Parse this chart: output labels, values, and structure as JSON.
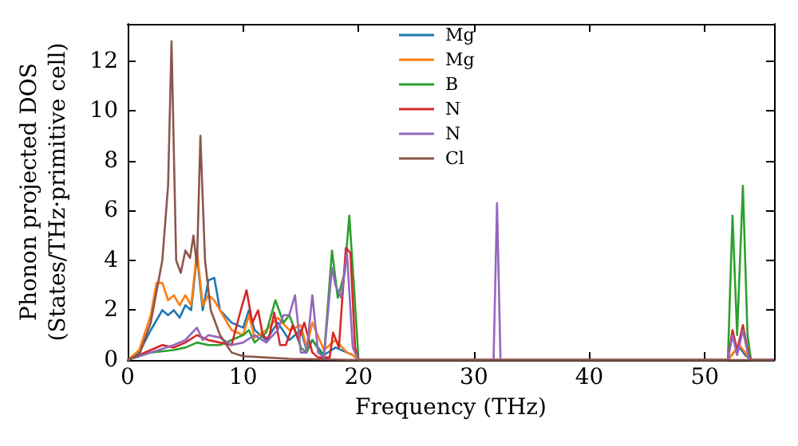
{
  "chart_data": {
    "type": "line",
    "xlabel": "Frequency (THz)",
    "ylabel": "Phonon projected DOS\n(States/THz·primitive cell)",
    "xlim": [
      0,
      56
    ],
    "ylim": [
      0,
      13.5
    ],
    "xticks": [
      0,
      10,
      20,
      30,
      40,
      50
    ],
    "yticks": [
      0,
      2,
      4,
      6,
      8,
      10,
      12
    ],
    "grid": false,
    "legend": "top",
    "marker": "none",
    "line_style": "solid",
    "series": [
      {
        "name": "Mg",
        "color": "#1f77b4",
        "x": [
          0,
          1,
          2,
          3,
          3.5,
          4,
          4.5,
          5,
          5.5,
          6,
          6.5,
          7,
          7.5,
          8,
          9,
          10,
          10.5,
          11,
          12,
          13,
          14,
          15,
          15.5,
          16,
          17,
          18,
          19,
          19.5,
          20,
          52,
          52.5,
          53,
          53.5,
          54,
          56
        ],
        "values": [
          0,
          0.3,
          1.2,
          2,
          1.8,
          2,
          1.7,
          2.2,
          2,
          4.2,
          2,
          3.2,
          3.3,
          2,
          1.5,
          1.3,
          2,
          1.2,
          0.8,
          1.5,
          0.8,
          1.2,
          0.4,
          0.8,
          0.2,
          0.5,
          0.3,
          0.2,
          0,
          0,
          0.3,
          0.5,
          0.2,
          0,
          0
        ]
      },
      {
        "name": "Mg",
        "color": "#ff7f0e",
        "x": [
          0,
          1,
          2,
          2.5,
          3,
          3.5,
          4,
          4.5,
          5,
          5.5,
          6,
          6.5,
          7,
          7.5,
          8,
          9,
          10,
          10.5,
          11,
          12,
          13,
          14,
          15,
          15.5,
          16,
          17,
          18,
          19,
          19.5,
          20,
          52,
          52.5,
          53,
          54,
          56
        ],
        "values": [
          0,
          0.4,
          1.8,
          3.1,
          3.1,
          2.4,
          2.6,
          2.2,
          2.6,
          2.2,
          4.4,
          2.2,
          2.6,
          2.4,
          2,
          1.2,
          1,
          1.8,
          0.9,
          1.2,
          1.7,
          1.2,
          1.4,
          0.5,
          1.5,
          0.4,
          0.8,
          0.3,
          0.2,
          0,
          0,
          0.3,
          0.6,
          0,
          0
        ]
      },
      {
        "name": "B",
        "color": "#2ca02c",
        "x": [
          0,
          2,
          4,
          5,
          6,
          7,
          8,
          9,
          10,
          10.5,
          11,
          12,
          12.8,
          13.5,
          14,
          14.5,
          15,
          15.5,
          16,
          17,
          17.7,
          18.2,
          18.8,
          19.2,
          19.6,
          20,
          52,
          52.4,
          52.8,
          53.3,
          53.7,
          54,
          56
        ],
        "values": [
          0,
          0.3,
          0.4,
          0.5,
          0.7,
          0.6,
          0.6,
          0.8,
          1,
          1.2,
          0.7,
          1.1,
          2.4,
          1.5,
          1.8,
          1.2,
          0.5,
          0.3,
          0.8,
          0.1,
          4.4,
          2.5,
          3.5,
          5.8,
          3,
          0,
          0,
          5.8,
          1,
          7,
          1,
          0,
          0
        ]
      },
      {
        "name": "N",
        "color": "#d62728",
        "x": [
          0,
          2,
          3,
          4,
          5,
          6,
          7,
          8,
          9,
          9.8,
          10.3,
          10.8,
          11.3,
          11.7,
          12.2,
          12.7,
          13.2,
          13.7,
          14.3,
          14.8,
          15.3,
          16,
          16.5,
          17.5,
          17.8,
          18.3,
          18.9,
          19.3,
          19.7,
          20,
          52,
          52.4,
          52.8,
          53.3,
          53.8,
          54,
          56
        ],
        "values": [
          0,
          0.4,
          0.6,
          0.5,
          0.7,
          1,
          0.8,
          0.7,
          0.6,
          2,
          2.8,
          1.5,
          2,
          1,
          0.8,
          1.9,
          0.6,
          0.6,
          1.4,
          0.8,
          1.5,
          0.3,
          0.1,
          0.1,
          1.1,
          0.5,
          4.5,
          4.3,
          0.5,
          0,
          0,
          1.2,
          0.4,
          1.4,
          0.2,
          0,
          0
        ]
      },
      {
        "name": "N",
        "color": "#9467bd",
        "x": [
          0,
          2,
          4,
          5,
          6,
          6.5,
          7,
          8,
          9,
          10,
          11,
          12,
          13,
          13.5,
          14,
          14.5,
          15,
          15.5,
          16,
          16.5,
          17,
          17.7,
          18,
          18.5,
          19,
          19.5,
          20,
          31.7,
          32,
          32.3,
          52,
          52.4,
          52.8,
          53.3,
          53.8,
          54,
          56
        ],
        "values": [
          0,
          0.3,
          0.6,
          0.8,
          1.3,
          0.8,
          1,
          0.9,
          0.6,
          0.7,
          1,
          0.7,
          1.2,
          1.8,
          1.8,
          2.6,
          0.3,
          0.3,
          2.6,
          0.3,
          0.1,
          3.7,
          3,
          2.5,
          4.3,
          0.5,
          0,
          0,
          6.3,
          0,
          0,
          1,
          0.2,
          1.2,
          0.1,
          0,
          0
        ]
      },
      {
        "name": "Cl",
        "color": "#8c564b",
        "x": [
          0,
          1,
          2,
          3,
          3.5,
          3.8,
          4.2,
          4.6,
          5,
          5.4,
          5.7,
          6,
          6.3,
          6.7,
          7.2,
          8,
          9,
          10,
          12,
          14,
          20,
          56
        ],
        "values": [
          0,
          0.2,
          1.5,
          4,
          7,
          12.8,
          4,
          3.5,
          4.4,
          4.1,
          5,
          3.8,
          9,
          4,
          2,
          1,
          0.3,
          0.15,
          0.1,
          0.05,
          0,
          0
        ]
      }
    ]
  }
}
